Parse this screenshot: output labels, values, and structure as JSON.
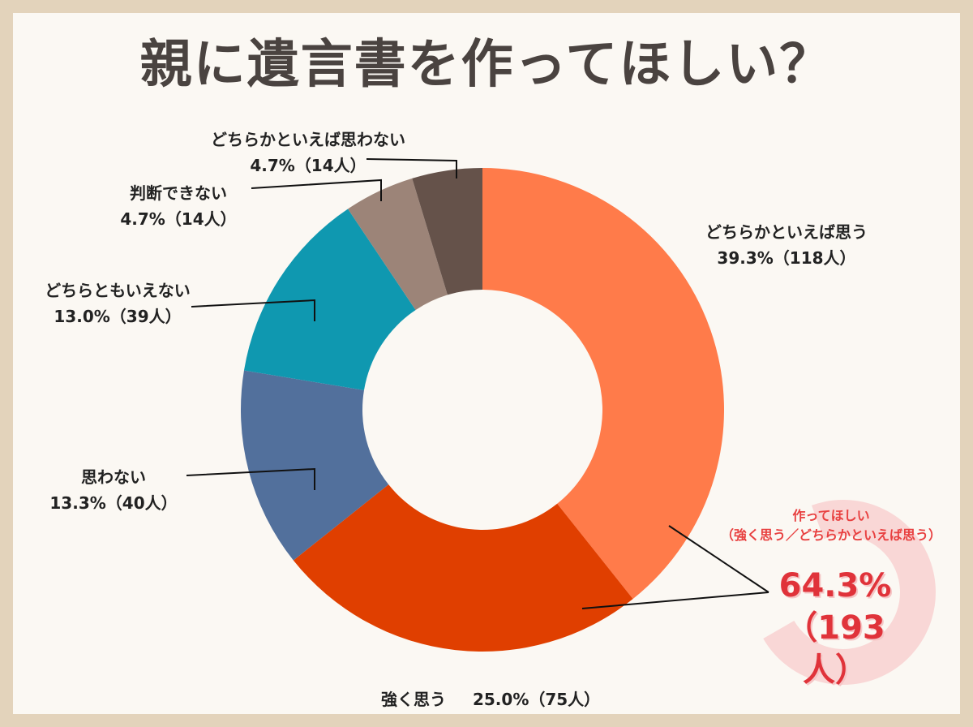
{
  "title": "親に遺言書を作ってほしい？",
  "chart_data": {
    "type": "pie",
    "donut": true,
    "unit": "%",
    "slices": [
      {
        "name": "どちらかといえば思う",
        "value": 39.3,
        "count": "118人",
        "color": "#ff7b4a",
        "pct_label": "39.3%（118人）"
      },
      {
        "name": "強く思う",
        "value": 25.0,
        "count": "75人",
        "color": "#e03f00",
        "pct_label": "25.0%（75人）"
      },
      {
        "name": "思わない",
        "value": 13.3,
        "count": "40人",
        "color": "#52709c",
        "pct_label": "13.3%（40人）"
      },
      {
        "name": "どちらともいえない",
        "value": 13.0,
        "count": "39人",
        "color": "#0f98b0",
        "pct_label": "13.0%（39人）"
      },
      {
        "name": "判断できない",
        "value": 4.7,
        "count": "14人",
        "color": "#9c8478",
        "pct_label": "4.7%（14人）"
      },
      {
        "name": "どちらかといえば思わない",
        "value": 4.7,
        "count": "14人",
        "color": "#65524a",
        "pct_label": "4.7%（14人）"
      }
    ],
    "highlight": {
      "title": "作ってほしい",
      "subtitle": "（強く思う／どちらかといえば思う）",
      "value": "64.3%",
      "count": "（193人）",
      "color": "#e0333a"
    }
  }
}
